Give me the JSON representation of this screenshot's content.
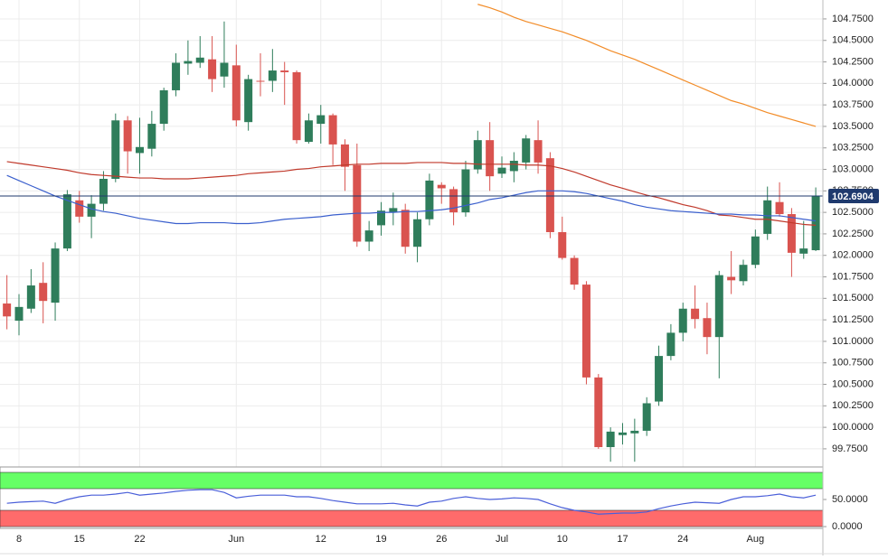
{
  "chart_data": [
    {
      "type": "candlestick",
      "categories": [
        null,
        "8",
        null,
        null,
        null,
        null,
        "15",
        null,
        null,
        null,
        null,
        "22",
        null,
        null,
        null,
        null,
        null,
        null,
        null,
        "Jun",
        null,
        null,
        null,
        null,
        null,
        null,
        "12",
        null,
        null,
        null,
        null,
        "19",
        null,
        null,
        null,
        null,
        "26",
        null,
        null,
        null,
        null,
        "Jul",
        null,
        null,
        null,
        null,
        "10",
        null,
        null,
        null,
        null,
        "17",
        null,
        null,
        null,
        null,
        "24",
        null,
        null,
        null,
        null,
        null,
        "Aug",
        null,
        null,
        null,
        null,
        null
      ],
      "open": [
        101.44,
        101.24,
        101.38,
        101.68,
        101.45,
        102.08,
        102.64,
        102.45,
        102.6,
        102.89,
        103.57,
        103.19,
        103.24,
        103.53,
        103.92,
        104.23,
        104.24,
        104.28,
        104.08,
        104.21,
        103.55,
        104.03,
        104.03,
        104.15,
        104.13,
        103.32,
        103.53,
        103.63,
        103.29,
        103.05,
        102.16,
        102.35,
        102.5,
        102.53,
        102.1,
        102.42,
        102.82,
        102.77,
        102.5,
        103.0,
        103.34,
        102.95,
        102.98,
        103.08,
        103.34,
        103.13,
        102.27,
        101.97,
        101.66,
        100.58,
        99.77,
        99.91,
        99.93,
        99.96,
        100.3,
        100.83,
        101.1,
        101.38,
        101.27,
        101.05,
        101.75,
        101.7,
        101.89,
        102.25,
        102.62,
        102.48,
        102.02,
        102.06
      ],
      "high": [
        101.77,
        101.55,
        101.84,
        101.92,
        102.15,
        102.76,
        102.75,
        102.7,
        102.98,
        103.65,
        103.62,
        103.6,
        103.68,
        103.95,
        104.35,
        104.5,
        104.55,
        104.55,
        104.72,
        104.45,
        104.1,
        104.35,
        104.4,
        104.25,
        104.15,
        103.65,
        103.75,
        103.65,
        103.35,
        103.3,
        102.4,
        102.62,
        102.73,
        102.6,
        102.5,
        102.95,
        102.85,
        102.8,
        103.1,
        103.45,
        103.55,
        103.15,
        103.2,
        103.4,
        103.57,
        103.2,
        102.45,
        102.0,
        101.7,
        100.62,
        100.0,
        100.05,
        100.1,
        100.35,
        100.95,
        101.2,
        101.45,
        101.65,
        101.45,
        101.82,
        102.05,
        101.95,
        102.3,
        102.8,
        102.85,
        102.55,
        102.4,
        102.79
      ],
      "low": [
        101.14,
        101.07,
        101.33,
        101.21,
        101.24,
        102.05,
        102.38,
        102.2,
        102.52,
        102.85,
        102.95,
        102.95,
        103.15,
        103.45,
        103.85,
        104.1,
        104.18,
        103.9,
        103.95,
        103.5,
        103.45,
        103.85,
        103.9,
        103.75,
        103.3,
        103.3,
        103.3,
        103.05,
        102.75,
        102.1,
        102.05,
        102.23,
        102.35,
        102.02,
        101.92,
        102.35,
        102.6,
        102.35,
        102.45,
        102.95,
        102.75,
        102.9,
        102.85,
        103.0,
        102.95,
        102.2,
        101.95,
        101.6,
        100.5,
        99.75,
        99.6,
        99.8,
        99.6,
        99.9,
        100.25,
        100.78,
        101.0,
        101.15,
        100.85,
        100.57,
        101.55,
        101.65,
        101.85,
        102.18,
        102.45,
        101.75,
        101.96,
        102.05
      ],
      "close": [
        101.29,
        101.4,
        101.65,
        101.47,
        102.08,
        102.71,
        102.45,
        102.6,
        102.89,
        103.57,
        103.21,
        103.26,
        103.53,
        103.92,
        104.24,
        104.26,
        104.3,
        104.05,
        104.24,
        103.57,
        104.05,
        104.02,
        104.15,
        104.13,
        103.34,
        103.57,
        103.63,
        103.29,
        103.03,
        102.16,
        102.29,
        102.52,
        102.55,
        102.1,
        102.42,
        102.87,
        102.78,
        102.5,
        103.0,
        103.34,
        102.92,
        103.02,
        103.1,
        103.36,
        103.08,
        102.27,
        101.97,
        101.66,
        100.58,
        99.77,
        99.95,
        99.94,
        99.96,
        100.28,
        100.83,
        101.1,
        101.38,
        101.26,
        101.05,
        101.77,
        101.71,
        101.89,
        102.22,
        102.64,
        102.48,
        102.03,
        102.08,
        102.69
      ],
      "up_color": "#2f7d5b",
      "down_color": "#d9534f",
      "series": [
        {
          "color": "#f28c28",
          "values": [
            null,
            null,
            null,
            null,
            null,
            null,
            null,
            null,
            null,
            null,
            null,
            null,
            null,
            null,
            null,
            null,
            null,
            null,
            null,
            null,
            null,
            null,
            null,
            null,
            null,
            null,
            null,
            null,
            null,
            null,
            null,
            null,
            null,
            null,
            null,
            null,
            null,
            null,
            null,
            104.92,
            104.88,
            104.83,
            104.77,
            104.72,
            104.68,
            104.64,
            104.6,
            104.55,
            104.5,
            104.44,
            104.38,
            104.33,
            104.28,
            104.22,
            104.16,
            104.1,
            104.04,
            103.98,
            103.92,
            103.86,
            103.8,
            103.76,
            103.71,
            103.66,
            103.62,
            103.58,
            103.54,
            103.5
          ]
        },
        {
          "color": "#c0392b",
          "values": [
            103.09,
            103.07,
            103.05,
            103.03,
            103.01,
            102.99,
            102.96,
            102.94,
            102.93,
            102.92,
            102.91,
            102.9,
            102.9,
            102.89,
            102.89,
            102.89,
            102.9,
            102.91,
            102.92,
            102.93,
            102.95,
            102.96,
            102.97,
            102.98,
            103.0,
            103.01,
            103.03,
            103.04,
            103.05,
            103.06,
            103.06,
            103.07,
            103.07,
            103.07,
            103.08,
            103.08,
            103.08,
            103.07,
            103.07,
            103.06,
            103.06,
            103.06,
            103.06,
            103.05,
            103.05,
            103.04,
            103.01,
            102.97,
            102.92,
            102.87,
            102.82,
            102.78,
            102.74,
            102.7,
            102.67,
            102.63,
            102.59,
            102.56,
            102.52,
            102.47,
            102.46,
            102.44,
            102.42,
            102.42,
            102.4,
            102.38,
            102.36,
            102.35
          ]
        },
        {
          "color": "#3a5fcd",
          "values": [
            102.93,
            102.87,
            102.81,
            102.75,
            102.69,
            102.64,
            102.59,
            102.54,
            102.51,
            102.49,
            102.46,
            102.43,
            102.41,
            102.39,
            102.37,
            102.37,
            102.38,
            102.38,
            102.38,
            102.37,
            102.37,
            102.38,
            102.4,
            102.42,
            102.43,
            102.44,
            102.45,
            102.47,
            102.48,
            102.49,
            102.49,
            102.5,
            102.5,
            102.51,
            102.51,
            102.52,
            102.53,
            102.55,
            102.58,
            102.61,
            102.65,
            102.67,
            102.7,
            102.73,
            102.75,
            102.75,
            102.75,
            102.74,
            102.72,
            102.69,
            102.66,
            102.63,
            102.59,
            102.56,
            102.54,
            102.52,
            102.51,
            102.5,
            102.49,
            102.48,
            102.48,
            102.47,
            102.47,
            102.46,
            102.46,
            102.44,
            102.42,
            102.4
          ]
        }
      ],
      "last_price": 102.6904,
      "last_price_color": "#1f3a6e",
      "ylim": [
        99.56,
        104.97
      ],
      "yticks": [
        {
          "value": 99.75,
          "label": "99.7500"
        },
        {
          "value": 100,
          "label": "100.0000"
        },
        {
          "value": 100.25,
          "label": "100.2500"
        },
        {
          "value": 100.5,
          "label": "100.5000"
        },
        {
          "value": 100.75,
          "label": "100.7500"
        },
        {
          "value": 101,
          "label": "101.0000"
        },
        {
          "value": 101.25,
          "label": "101.2500"
        },
        {
          "value": 101.5,
          "label": "101.5000"
        },
        {
          "value": 101.75,
          "label": "101.7500"
        },
        {
          "value": 102,
          "label": "102.0000"
        },
        {
          "value": 102.25,
          "label": "102.2500"
        },
        {
          "value": 102.5,
          "label": "102.5000"
        },
        {
          "value": 102.75,
          "label": "102.7500"
        },
        {
          "value": 103,
          "label": "103.0000"
        },
        {
          "value": 103.25,
          "label": "103.2500"
        },
        {
          "value": 103.5,
          "label": "103.5000"
        },
        {
          "value": 103.75,
          "label": "103.7500"
        },
        {
          "value": 104,
          "label": "104.0000"
        },
        {
          "value": 104.25,
          "label": "104.2500"
        },
        {
          "value": 104.5,
          "label": "104.5000"
        },
        {
          "value": 104.75,
          "label": "104.7500"
        }
      ],
      "grid": true
    },
    {
      "type": "line",
      "values": [
        43,
        45,
        46,
        47,
        43,
        50,
        55,
        58,
        58,
        60,
        63,
        58,
        60,
        62,
        65,
        67,
        68,
        68,
        63,
        53,
        56,
        58,
        58,
        58,
        55,
        55,
        52,
        48,
        45,
        42,
        42,
        42,
        43,
        40,
        38,
        45,
        47,
        52,
        55,
        52,
        50,
        51,
        53,
        52,
        50,
        42,
        35,
        30,
        27,
        23,
        24,
        25,
        25,
        27,
        33,
        38,
        42,
        45,
        44,
        43,
        50,
        55,
        55,
        57,
        60,
        55,
        53,
        58
      ],
      "color": "#4a5fd9",
      "upper_band": [
        70,
        100
      ],
      "upper_color": "#66ff66",
      "lower_band": [
        0,
        30
      ],
      "lower_color": "#ff6b6b",
      "ylim": [
        -3.3,
        110
      ],
      "yticks": [
        {
          "value": 50,
          "label": "50.0000"
        },
        {
          "value": 0,
          "label": "0.0000"
        }
      ]
    }
  ]
}
